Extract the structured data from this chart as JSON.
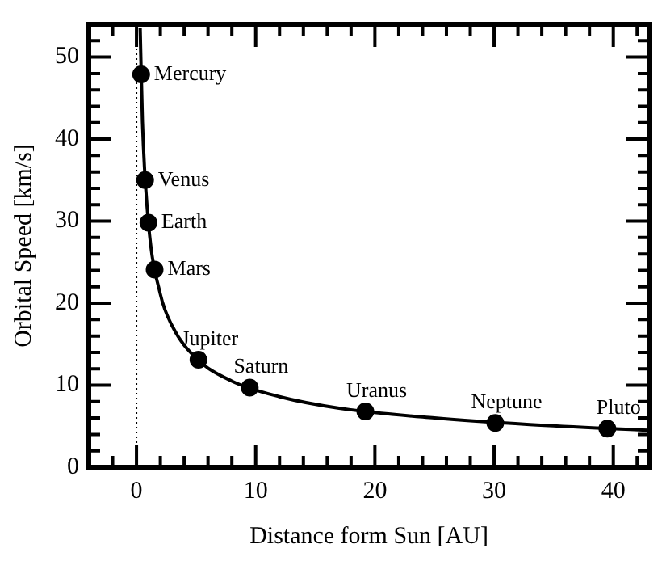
{
  "chart_data": {
    "type": "scatter",
    "xlabel": "Distance form Sun [AU]",
    "ylabel": "Orbital Speed [km/s]",
    "xlim": [
      -4,
      43
    ],
    "ylim": [
      0,
      54
    ],
    "xticks": [
      {
        "value": -2,
        "label": null
      },
      0,
      {
        "value": 2,
        "label": null
      },
      {
        "value": 4,
        "label": null
      },
      {
        "value": 6,
        "label": null
      },
      {
        "value": 8,
        "label": null
      },
      10,
      {
        "value": 12,
        "label": null
      },
      {
        "value": 14,
        "label": null
      },
      {
        "value": 16,
        "label": null
      },
      {
        "value": 18,
        "label": null
      },
      20,
      {
        "value": 22,
        "label": null
      },
      {
        "value": 24,
        "label": null
      },
      {
        "value": 26,
        "label": null
      },
      {
        "value": 28,
        "label": null
      },
      30,
      {
        "value": 32,
        "label": null
      },
      {
        "value": 34,
        "label": null
      },
      {
        "value": 36,
        "label": null
      },
      {
        "value": 38,
        "label": null
      },
      40,
      {
        "value": 42,
        "label": null
      }
    ],
    "yticks": [
      0,
      {
        "value": 2,
        "label": null
      },
      {
        "value": 4,
        "label": null
      },
      {
        "value": 6,
        "label": null
      },
      {
        "value": 8,
        "label": null
      },
      10,
      {
        "value": 12,
        "label": null
      },
      {
        "value": 14,
        "label": null
      },
      {
        "value": 16,
        "label": null
      },
      {
        "value": 18,
        "label": null
      },
      20,
      {
        "value": 22,
        "label": null
      },
      {
        "value": 24,
        "label": null
      },
      {
        "value": 26,
        "label": null
      },
      {
        "value": 28,
        "label": null
      },
      30,
      {
        "value": 32,
        "label": null
      },
      {
        "value": 34,
        "label": null
      },
      {
        "value": 36,
        "label": null
      },
      {
        "value": 38,
        "label": null
      },
      40,
      {
        "value": 42,
        "label": null
      },
      {
        "value": 44,
        "label": null
      },
      {
        "value": 46,
        "label": null
      },
      {
        "value": 48,
        "label": null
      },
      50,
      {
        "value": 52,
        "label": null
      }
    ],
    "grid": false,
    "legend": false,
    "marker": "circle",
    "series": [
      {
        "type": "line",
        "color": "#000000",
        "marker": "none",
        "x": [
          0.31,
          0.5,
          1,
          2,
          3,
          5,
          8,
          12,
          17,
          25,
          33,
          43
        ],
        "values": [
          53.5,
          42.1,
          29.8,
          21.1,
          17.2,
          13.3,
          10.5,
          8.6,
          7.2,
          6.0,
          5.2,
          4.5
        ]
      },
      {
        "color": "#000000",
        "x": [
          0.39,
          0.72,
          1,
          1.52,
          5.2,
          9.5,
          19.2,
          30.1,
          39.5
        ],
        "values": [
          47.9,
          35,
          29.8,
          24.1,
          13.1,
          9.7,
          6.8,
          5.4,
          4.7
        ]
      }
    ],
    "ref_lines": [
      {
        "axis": "x",
        "value": 0,
        "line_style": "dotted",
        "color": "#000000"
      }
    ],
    "annotations": [
      {
        "text": "Mercury",
        "x": 0.39,
        "y": 47.9
      },
      {
        "text": "Venus",
        "x": 0.72,
        "y": 35
      },
      {
        "text": "Earth",
        "x": 1,
        "y": 29.8
      },
      {
        "text": "Mars",
        "x": 1.52,
        "y": 24.1
      },
      {
        "text": "Jupiter",
        "x": 5.2,
        "y": 13.1
      },
      {
        "text": "Saturn",
        "x": 9.5,
        "y": 9.7
      },
      {
        "text": "Uranus",
        "x": 19.2,
        "y": 6.8
      },
      {
        "text": "Neptune",
        "x": 30.1,
        "y": 5.4
      },
      {
        "text": "Pluto",
        "x": 39.5,
        "y": 4.7
      }
    ]
  }
}
